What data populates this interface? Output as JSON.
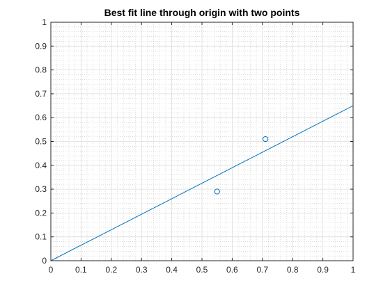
{
  "chart_data": {
    "type": "scatter",
    "title": "Best fit line through origin with two points",
    "xlabel": "",
    "ylabel": "",
    "xlim": [
      0,
      1
    ],
    "ylim": [
      0,
      1
    ],
    "x_ticks": [
      "0",
      "0.1",
      "0.2",
      "0.3",
      "0.4",
      "0.5",
      "0.6",
      "0.7",
      "0.8",
      "0.9",
      "1"
    ],
    "y_ticks": [
      "0",
      "0.1",
      "0.2",
      "0.3",
      "0.4",
      "0.5",
      "0.6",
      "0.7",
      "0.8",
      "0.9",
      "1"
    ],
    "grid": true,
    "minor_grid": true,
    "series": [
      {
        "kind": "points",
        "marker": "circle-open",
        "color": "#0072BD",
        "x": [
          0.55,
          0.71
        ],
        "y": [
          0.29,
          0.51
        ]
      },
      {
        "kind": "line",
        "color": "#0072BD",
        "x": [
          0,
          1
        ],
        "y": [
          0,
          0.65
        ]
      }
    ]
  }
}
